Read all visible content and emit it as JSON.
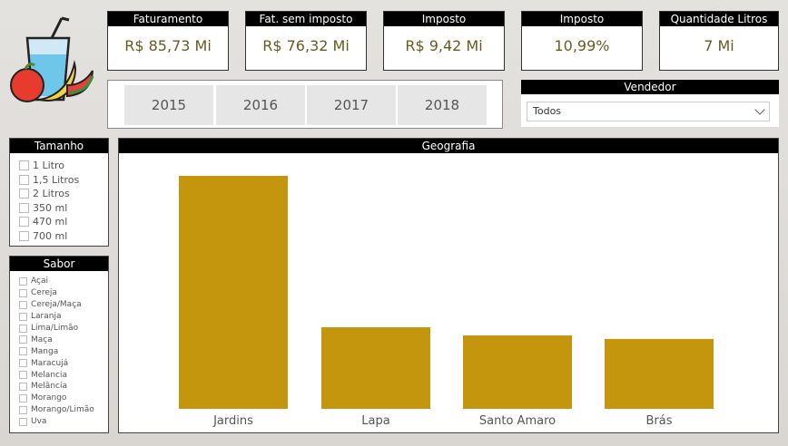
{
  "kpis": [
    {
      "title": "Faturamento",
      "value": "R$ 85,73 Mi"
    },
    {
      "title": "Fat. sem imposto",
      "value": "R$ 76,32 Mi"
    },
    {
      "title": "Imposto",
      "value": "R$ 9,42 Mi"
    },
    {
      "title": "Imposto",
      "value": "10,99%"
    },
    {
      "title": "Quantidade Litros",
      "value": "7 Mi"
    }
  ],
  "years": [
    "2015",
    "2016",
    "2017",
    "2018"
  ],
  "vendedor": {
    "title": "Vendedor",
    "selected": "Todos"
  },
  "tamanho": {
    "title": "Tamanho",
    "items": [
      "1 Litro",
      "1,5 Litros",
      "2 Litros",
      "350 ml",
      "470 ml",
      "700 ml"
    ]
  },
  "sabor": {
    "title": "Sabor",
    "items": [
      "Açai",
      "Cereja",
      "Cereja/Maça",
      "Laranja",
      "Lima/Limão",
      "Maça",
      "Manga",
      "Maracujá",
      "Melancia",
      "Melância",
      "Morango",
      "Morango/Limão",
      "Uva"
    ]
  },
  "colors": {
    "bar": "#c4960e",
    "header": "#000000",
    "kpi_text": "#6b5a1e"
  },
  "logo_icon": "juice-fruit-logo-icon",
  "chart_data": {
    "type": "bar",
    "title": "Geografia",
    "categories": [
      "Jardins",
      "Lapa",
      "Santo Amaro",
      "Brás"
    ],
    "values": [
      100,
      35,
      31.5,
      30
    ],
    "ylim": [
      0,
      100
    ],
    "grid": false
  }
}
